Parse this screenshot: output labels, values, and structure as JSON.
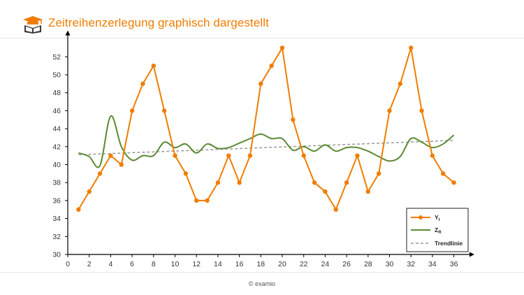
{
  "header": {
    "title": "Zeitreihenzerlegung graphisch dargestellt",
    "logo_icon": "book-with-graduation-cap-icon",
    "accent_color": "#f07d00"
  },
  "footer": {
    "copyright": "© examio"
  },
  "chart_data": {
    "type": "line",
    "title": "",
    "xlabel": "",
    "ylabel": "",
    "xlim": [
      0,
      37
    ],
    "ylim": [
      30,
      54
    ],
    "x_ticks": [
      0,
      2,
      4,
      6,
      8,
      10,
      12,
      14,
      16,
      18,
      20,
      22,
      24,
      26,
      28,
      30,
      32,
      34,
      36
    ],
    "y_ticks": [
      30,
      32,
      34,
      36,
      38,
      40,
      42,
      44,
      46,
      48,
      50,
      52
    ],
    "grid": false,
    "legend_position": "bottom-right",
    "series": [
      {
        "key": "yt",
        "name": "Y",
        "name_sub": "t",
        "color": "#f07d00",
        "style": "line-markers",
        "x": [
          1,
          2,
          3,
          4,
          5,
          6,
          7,
          8,
          9,
          10,
          11,
          12,
          13,
          14,
          15,
          16,
          17,
          18,
          19,
          20,
          21,
          22,
          23,
          24,
          25,
          26,
          27,
          28,
          29,
          30,
          31,
          32,
          33,
          34,
          35,
          36
        ],
        "values": [
          35,
          37,
          39,
          41,
          40,
          46,
          49,
          51,
          46,
          41,
          39,
          36,
          36,
          38,
          41,
          38,
          41,
          49,
          51,
          53,
          45,
          41,
          38,
          37,
          35,
          38,
          41,
          37,
          39,
          46,
          49,
          53,
          46,
          41,
          39,
          38
        ]
      },
      {
        "key": "zr",
        "name": "Z",
        "name_sub": "R",
        "color": "#5b8a32",
        "style": "smooth",
        "x": [
          1,
          2,
          3,
          4,
          5,
          6,
          7,
          8,
          9,
          10,
          11,
          12,
          13,
          14,
          15,
          16,
          17,
          18,
          19,
          20,
          21,
          22,
          23,
          24,
          25,
          26,
          27,
          28,
          29,
          30,
          31,
          32,
          33,
          34,
          35,
          36
        ],
        "values": [
          41.3,
          40.9,
          39.9,
          45.4,
          42.0,
          40.5,
          41.0,
          41.0,
          42.5,
          41.9,
          42.3,
          41.3,
          42.3,
          41.8,
          41.9,
          42.4,
          42.9,
          43.4,
          42.9,
          42.9,
          41.6,
          42.0,
          41.5,
          42.2,
          41.5,
          41.9,
          41.9,
          41.5,
          40.9,
          40.4,
          40.9,
          42.9,
          42.5,
          41.9,
          42.3,
          43.3
        ]
      },
      {
        "key": "trend",
        "name": "Trendlinie",
        "color": "#999999",
        "style": "dashed",
        "x": [
          1,
          36
        ],
        "values": [
          41.1,
          42.7
        ]
      }
    ]
  }
}
